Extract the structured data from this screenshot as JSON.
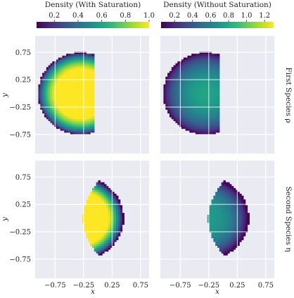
{
  "figure": {
    "colorbars": [
      {
        "label": "Density (With Saturation)",
        "ticks": [
          "0.2",
          "0.4",
          "0.6",
          "0.8",
          "1.0"
        ],
        "tick_values": [
          0.2,
          0.4,
          0.6,
          0.8,
          1.0
        ],
        "range": [
          0.05,
          1.0
        ]
      },
      {
        "label": "Density (Without Saturation)",
        "ticks": [
          "0.2",
          "0.4",
          "0.6",
          "0.8",
          "1.0",
          "1.2"
        ],
        "tick_values": [
          0.2,
          0.4,
          0.6,
          0.8,
          1.0,
          1.2
        ],
        "range": [
          0.05,
          1.3
        ]
      }
    ],
    "row_labels": [
      "First Species ρ",
      "Second Species η"
    ],
    "xlabel": "x",
    "ylabel": "y",
    "colors": {
      "panel_bg": "#eaeaf2",
      "grid": "#ffffff"
    }
  },
  "chart_data": {
    "type": "heatmap",
    "colormap": "viridis",
    "xlim": [
      -1.1,
      0.9
    ],
    "ylim": [
      -1.1,
      1.05
    ],
    "xticks": [
      "−0.75",
      "−0.25",
      "0.25",
      "0.75"
    ],
    "xtick_values": [
      -0.75,
      -0.25,
      0.25,
      0.75
    ],
    "yticks": [
      "0.75",
      "0.25",
      "−0.25",
      "−0.75"
    ],
    "ytick_values": [
      0.75,
      0.25,
      -0.25,
      -0.75
    ],
    "grid": true,
    "panels": [
      {
        "row": 0,
        "col": 0,
        "species": "first",
        "colorbar": 0,
        "region": "disk x ≤ -0.06",
        "center": [
          -0.3,
          0.0
        ],
        "radius": 0.75,
        "peak": 1.0,
        "saturated_at": 0.72
      },
      {
        "row": 0,
        "col": 1,
        "species": "first",
        "colorbar": 1,
        "region": "disk x ≤ -0.06",
        "center": [
          -0.3,
          0.0
        ],
        "radius": 0.75,
        "peak": 0.78
      },
      {
        "row": 1,
        "col": 0,
        "species": "second",
        "colorbar": 0,
        "region": "crescent",
        "center": [
          -0.3,
          0.0
        ],
        "radius": 0.75,
        "peak": 1.0,
        "saturated_at": 0.72
      },
      {
        "row": 1,
        "col": 1,
        "species": "second",
        "colorbar": 1,
        "region": "crescent",
        "center": [
          -0.3,
          0.0
        ],
        "radius": 0.75,
        "peak": 0.72
      }
    ]
  }
}
